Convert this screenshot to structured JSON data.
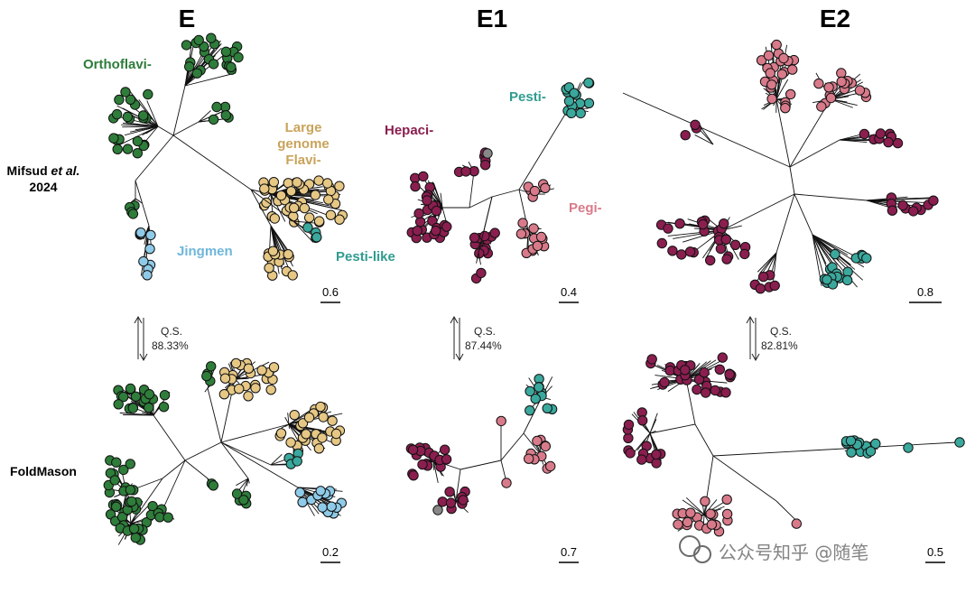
{
  "titles": {
    "e": "E",
    "e1": "E1",
    "e2": "E2"
  },
  "rows": {
    "top": {
      "label_main": "Mifsud ",
      "label_italic": "et al.",
      "label_year": "2024"
    },
    "bottom": {
      "label": "FoldMason"
    }
  },
  "clades": {
    "orthoflavi": "Orthoflavi-",
    "large_genome_line1": "Large",
    "large_genome_line2": "genome",
    "large_genome_line3": "Flavi-",
    "jingmen": "Jingmen",
    "pesti_like": "Pesti-like",
    "hepaci": "Hepaci-",
    "pesti": "Pesti-",
    "pegi": "Pegi-"
  },
  "qs": {
    "label": "Q.S.",
    "e": "88.33%",
    "e1": "87.44%",
    "e2": "82.81%"
  },
  "scale_bars": {
    "e_top": "0.6",
    "e1_top": "0.4",
    "e2_top": "0.8",
    "e_bottom": "0.2",
    "e1_bottom": "0.7",
    "e2_bottom": "0.5"
  },
  "colors": {
    "orthoflavi": "#2e7d3a",
    "large_genome": "#e6c784",
    "jingmen": "#8fcbe8",
    "pesti": "#3aa89c",
    "hepaci": "#8a1e4f",
    "pegi": "#d87a8a",
    "unknown": "#888888"
  },
  "watermark": "公众号知乎 @随笔"
}
